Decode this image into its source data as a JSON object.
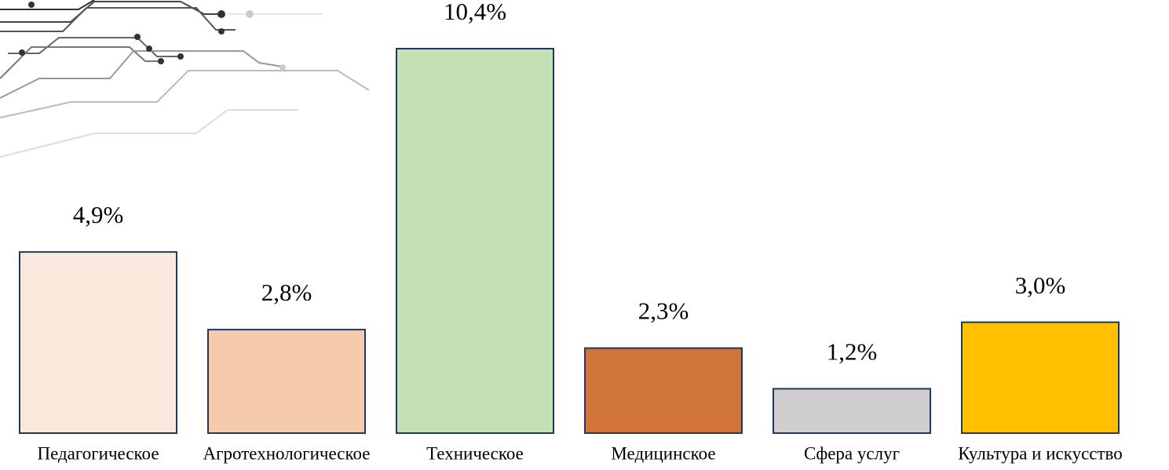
{
  "chart_data": {
    "type": "bar",
    "categories": [
      "Педагогическое",
      "Агротехнологическое",
      "Техническое",
      "Медицинское",
      "Сфера услуг",
      "Культура и искусство"
    ],
    "values": [
      4.9,
      2.8,
      10.4,
      2.3,
      1.2,
      3.0
    ],
    "value_labels": [
      "4,9%",
      "2,8%",
      "10,4%",
      "2,3%",
      "1,2%",
      "3,0%"
    ],
    "colors": [
      "#fbe9de",
      "#f6cbac",
      "#c5e0b4",
      "#d0743a",
      "#d0cece",
      "#ffc000"
    ],
    "border_color": "#1f3864"
  }
}
